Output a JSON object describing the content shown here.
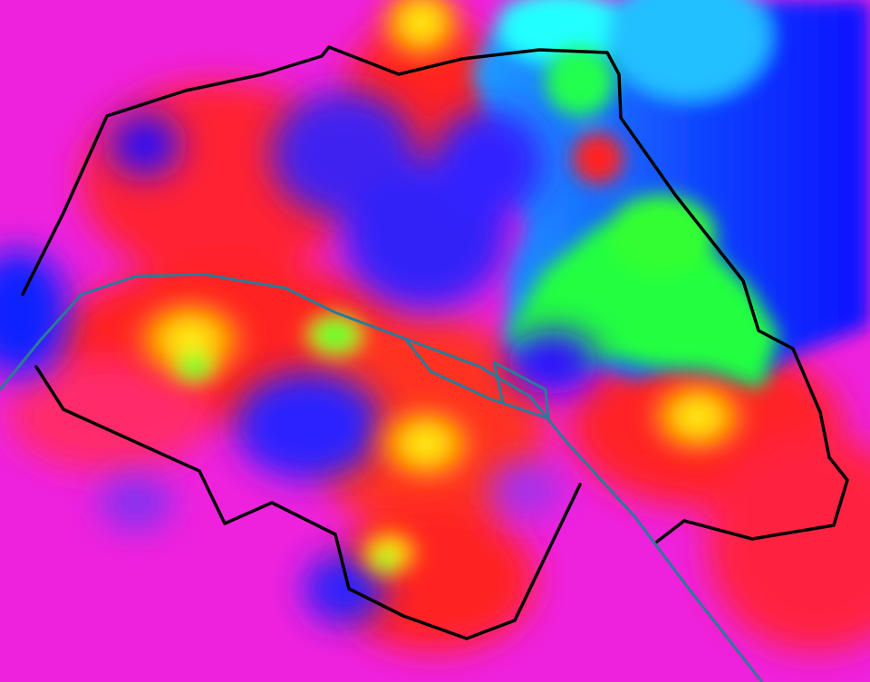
{
  "map": {
    "kind": "interpolated color field with boundary and river overlay",
    "color_scale": [
      "#ff22cc",
      "#ff2020",
      "#ffff20",
      "#20ff20",
      "#20ffff",
      "#2020ff",
      "#cc22ff"
    ],
    "colors": {
      "base": "#ee22dd",
      "boundary_line": "#000000",
      "river_line": "#2a7a9a"
    },
    "layers": [
      "heatmap-field",
      "boundary-outline",
      "river"
    ]
  }
}
